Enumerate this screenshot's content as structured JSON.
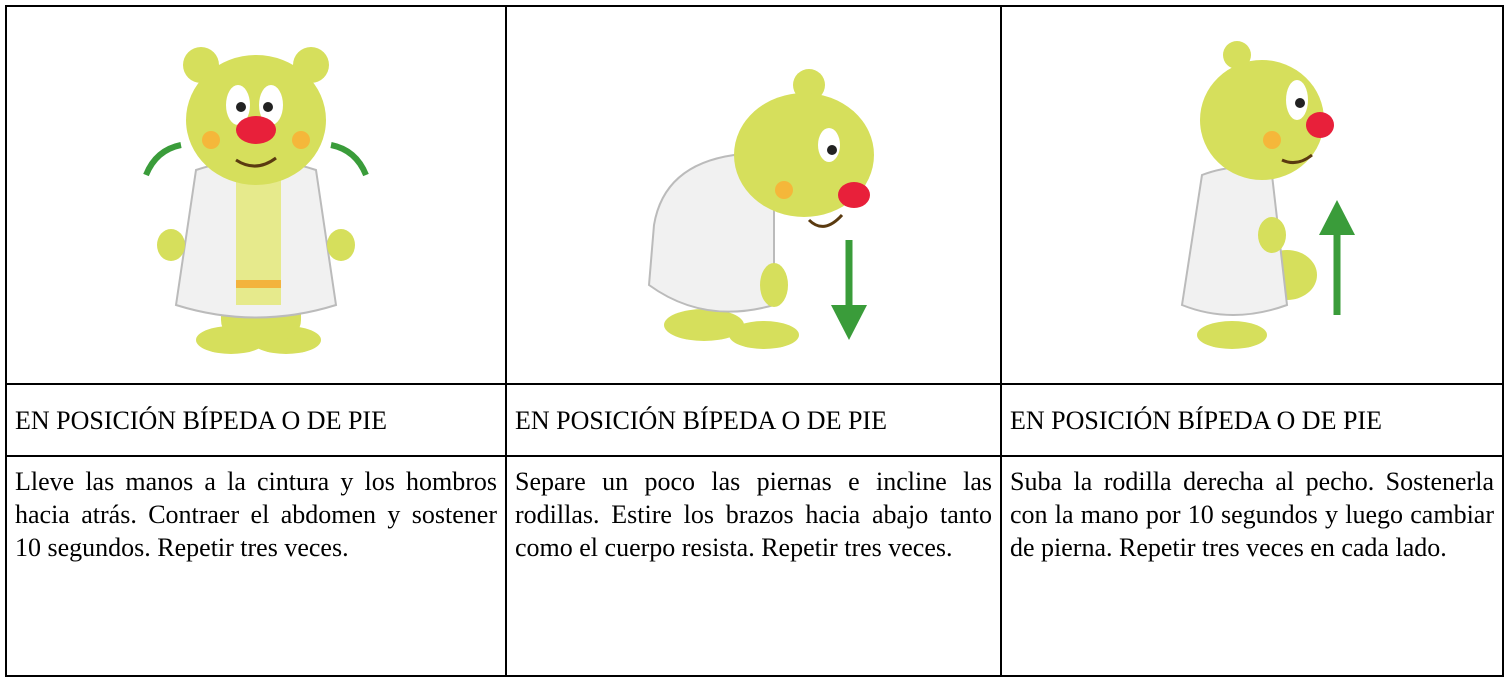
{
  "table": {
    "rows": [
      [
        "EN POSICIÓN BÍPEDA O DE PIE",
        "EN POSICIÓN BÍPEDA O DE PIE",
        "EN POSICIÓN BÍPEDA O DE PIE"
      ],
      [
        "Lleve las manos a la cintura y los hombros hacia atrás. Contraer el abdomen y sostener 10 segundos. Repetir tres veces.",
        "Separe un poco las piernas e incline las rodillas. Estire los brazos hacia abajo tanto como el cuerpo resista. Repetir tres veces.",
        "Suba la rodilla derecha al pecho. Sostenerla con la mano por 10 segundos y luego cambiar de pierna. Repetir tres veces en cada lado."
      ]
    ]
  }
}
